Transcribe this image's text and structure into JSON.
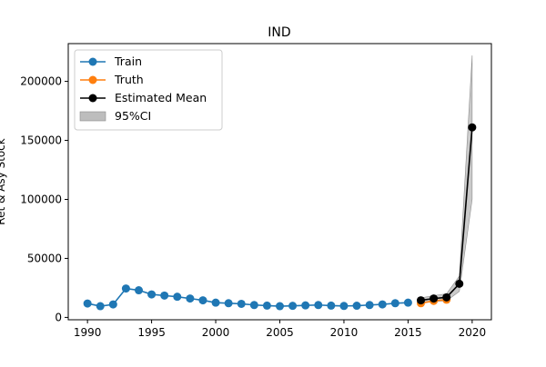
{
  "chart_data": {
    "type": "line",
    "title": "IND",
    "xlabel": "",
    "ylabel": "Ret & Asy Stock",
    "xlim": [
      1988.5,
      2021.5
    ],
    "ylim": [
      -2000,
      232000
    ],
    "xticks": [
      1990,
      1995,
      2000,
      2005,
      2010,
      2015,
      2020
    ],
    "yticks": [
      0,
      50000,
      100000,
      150000,
      200000
    ],
    "grid": false,
    "legend_position": "top-left",
    "series": [
      {
        "name": "Train",
        "color": "#1f77b4",
        "x": [
          1990,
          1991,
          1992,
          1993,
          1994,
          1995,
          1996,
          1997,
          1998,
          1999,
          2000,
          2001,
          2002,
          2003,
          2004,
          2005,
          2006,
          2007,
          2008,
          2009,
          2010,
          2011,
          2012,
          2013,
          2014,
          2015
        ],
        "y": [
          11800,
          9500,
          11000,
          24500,
          23000,
          19500,
          18500,
          17500,
          16000,
          14500,
          12500,
          12000,
          11500,
          10500,
          10000,
          9500,
          9800,
          10200,
          10500,
          10000,
          9700,
          9900,
          10500,
          11000,
          12000,
          12500
        ]
      },
      {
        "name": "Truth",
        "color": "#ff7f0e",
        "x": [
          2016,
          2017,
          2018
        ],
        "y": [
          12000,
          14000,
          15000
        ]
      },
      {
        "name": "Estimated Mean",
        "color": "#000000",
        "x": [
          2016,
          2017,
          2018,
          2019,
          2020
        ],
        "y": [
          14500,
          16000,
          17000,
          28500,
          161000
        ]
      }
    ],
    "ci": {
      "name": "95%CI",
      "color": "#bdbdbd",
      "x": [
        2016,
        2017,
        2018,
        2019,
        2020
      ],
      "lower": [
        12500,
        13500,
        14000,
        22000,
        100000
      ],
      "upper": [
        16500,
        18500,
        20000,
        35000,
        222000
      ]
    }
  }
}
